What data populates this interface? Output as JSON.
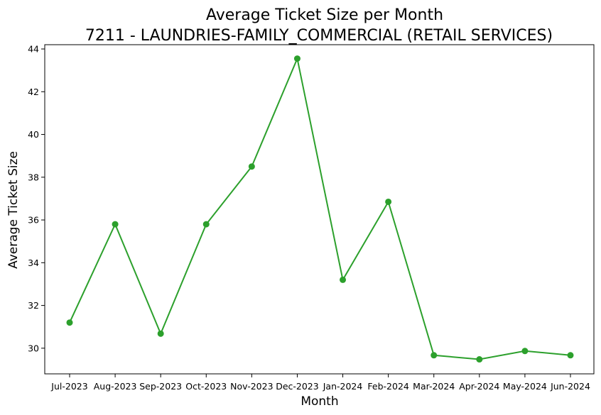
{
  "chart_data": {
    "type": "line",
    "title": "Average Ticket Size per Month",
    "subtitle": "7211 - LAUNDRIES-FAMILY_COMMERCIAL (RETAIL SERVICES)",
    "xlabel": "Month",
    "ylabel": "Average Ticket Size",
    "categories": [
      "Jul-2023",
      "Aug-2023",
      "Sep-2023",
      "Oct-2023",
      "Nov-2023",
      "Dec-2023",
      "Jan-2024",
      "Feb-2024",
      "Mar-2024",
      "Apr-2024",
      "May-2024",
      "Jun-2024"
    ],
    "series": [
      {
        "values": [
          31.2,
          35.8,
          30.68,
          35.8,
          38.5,
          43.55,
          33.2,
          36.85,
          29.67,
          29.48,
          29.87,
          29.67
        ],
        "color": "#2ca02c",
        "marker": "circle"
      }
    ],
    "ylim": [
      28.8,
      44.2
    ],
    "yticks": [
      30,
      32,
      34,
      36,
      38,
      40,
      42,
      44
    ],
    "grid": false
  }
}
